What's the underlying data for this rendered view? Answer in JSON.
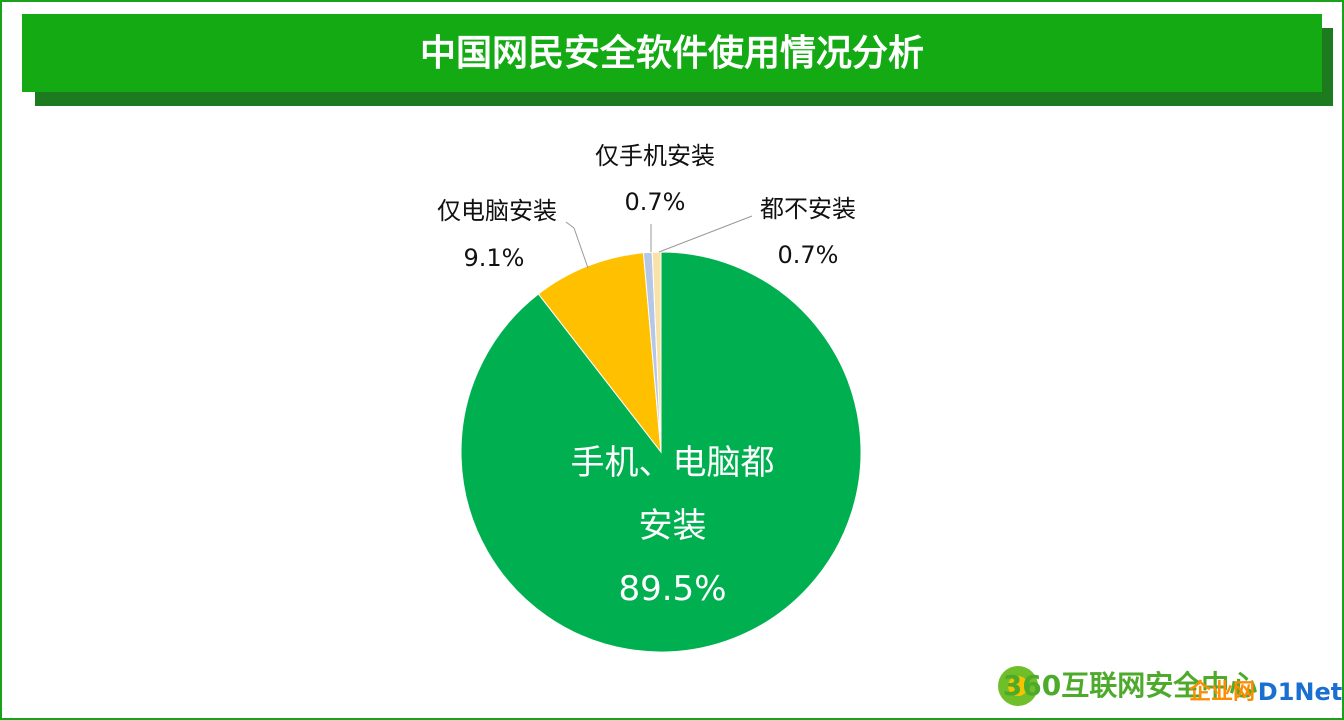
{
  "chart_data": {
    "type": "pie",
    "title": "中国网民安全软件使用情况分析",
    "categories": [
      "手机、电脑都安装",
      "仅电脑安装",
      "仅手机安装",
      "都不安装"
    ],
    "values": [
      89.5,
      9.1,
      0.7,
      0.7
    ],
    "value_labels": [
      "89.5%",
      "9.1%",
      "0.7%",
      "0.7%"
    ],
    "colors": [
      "#00b050",
      "#ffc000",
      "#b4c7e7",
      "#f8e2a8"
    ]
  },
  "watermark": {
    "logo": "360互联网安全中心",
    "site": "企业网",
    "brand": "D1Net"
  }
}
